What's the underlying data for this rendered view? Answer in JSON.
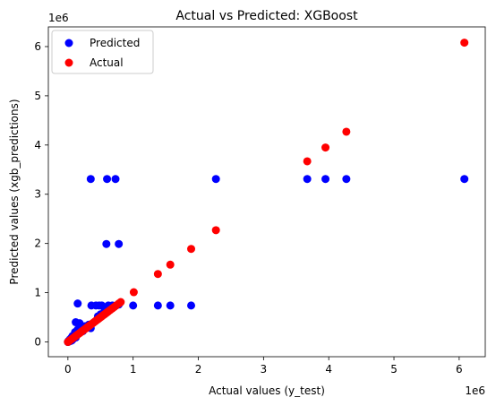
{
  "chart_data": {
    "type": "scatter",
    "title": "Actual vs Predicted: XGBoost",
    "xlabel": "Actual values (y_test)",
    "ylabel": "Predicted values (xgb_predictions)",
    "x_offset_label": "1e6",
    "y_offset_label": "1e6",
    "xlim": [
      -300000,
      6400000
    ],
    "ylim": [
      -300000,
      6400000
    ],
    "x_ticks": [
      0,
      1000000,
      2000000,
      3000000,
      4000000,
      5000000,
      6000000
    ],
    "x_tick_labels": [
      "0",
      "1",
      "2",
      "3",
      "4",
      "5",
      "6"
    ],
    "y_ticks": [
      0,
      1000000,
      2000000,
      3000000,
      4000000,
      5000000,
      6000000
    ],
    "y_tick_labels": [
      "0",
      "1",
      "2",
      "3",
      "4",
      "5",
      "6"
    ],
    "legend_position": "upper-left",
    "series": [
      {
        "name": "Predicted",
        "color": "#0000ff",
        "points": [
          [
            0,
            0
          ],
          [
            10000,
            20000
          ],
          [
            20000,
            10000
          ],
          [
            30000,
            50000
          ],
          [
            40000,
            20000
          ],
          [
            50000,
            80000
          ],
          [
            60000,
            30000
          ],
          [
            70000,
            120000
          ],
          [
            80000,
            60000
          ],
          [
            90000,
            100000
          ],
          [
            100000,
            150000
          ],
          [
            110000,
            200000
          ],
          [
            120000,
            90000
          ],
          [
            130000,
            170000
          ],
          [
            150000,
            250000
          ],
          [
            170000,
            180000
          ],
          [
            190000,
            260000
          ],
          [
            210000,
            300000
          ],
          [
            230000,
            220000
          ],
          [
            260000,
            320000
          ],
          [
            280000,
            290000
          ],
          [
            320000,
            350000
          ],
          [
            350000,
            280000
          ],
          [
            120000,
            400000
          ],
          [
            180000,
            380000
          ],
          [
            150000,
            780000
          ],
          [
            360000,
            740000
          ],
          [
            430000,
            740000
          ],
          [
            480000,
            740000
          ],
          [
            520000,
            740000
          ],
          [
            560000,
            700000
          ],
          [
            620000,
            740000
          ],
          [
            680000,
            740000
          ],
          [
            740000,
            740000
          ],
          [
            780000,
            760000
          ],
          [
            460000,
            520000
          ],
          [
            500000,
            560000
          ],
          [
            560000,
            620000
          ],
          [
            600000,
            650000
          ],
          [
            620000,
            700000
          ],
          [
            1000000,
            740000
          ],
          [
            1380000,
            740000
          ],
          [
            1570000,
            740000
          ],
          [
            1890000,
            740000
          ],
          [
            590000,
            1990000
          ],
          [
            780000,
            1990000
          ],
          [
            350000,
            3310000
          ],
          [
            600000,
            3310000
          ],
          [
            730000,
            3310000
          ],
          [
            2270000,
            3310000
          ],
          [
            3670000,
            3310000
          ],
          [
            3950000,
            3310000
          ],
          [
            4270000,
            3310000
          ],
          [
            6080000,
            3310000
          ]
        ]
      },
      {
        "name": "Actual",
        "color": "#ff0000",
        "points": [
          [
            0,
            0
          ],
          [
            20000,
            20000
          ],
          [
            40000,
            40000
          ],
          [
            60000,
            60000
          ],
          [
            80000,
            80000
          ],
          [
            100000,
            100000
          ],
          [
            120000,
            120000
          ],
          [
            140000,
            140000
          ],
          [
            160000,
            160000
          ],
          [
            180000,
            180000
          ],
          [
            200000,
            200000
          ],
          [
            220000,
            220000
          ],
          [
            240000,
            240000
          ],
          [
            260000,
            260000
          ],
          [
            280000,
            280000
          ],
          [
            300000,
            300000
          ],
          [
            320000,
            320000
          ],
          [
            340000,
            340000
          ],
          [
            360000,
            360000
          ],
          [
            380000,
            380000
          ],
          [
            400000,
            400000
          ],
          [
            420000,
            420000
          ],
          [
            440000,
            440000
          ],
          [
            460000,
            460000
          ],
          [
            480000,
            480000
          ],
          [
            500000,
            500000
          ],
          [
            520000,
            520000
          ],
          [
            540000,
            540000
          ],
          [
            560000,
            560000
          ],
          [
            580000,
            580000
          ],
          [
            600000,
            600000
          ],
          [
            620000,
            620000
          ],
          [
            650000,
            650000
          ],
          [
            680000,
            680000
          ],
          [
            710000,
            710000
          ],
          [
            740000,
            740000
          ],
          [
            780000,
            780000
          ],
          [
            810000,
            810000
          ],
          [
            1010000,
            1010000
          ],
          [
            1380000,
            1380000
          ],
          [
            1570000,
            1570000
          ],
          [
            1890000,
            1890000
          ],
          [
            2270000,
            2270000
          ],
          [
            3670000,
            3670000
          ],
          [
            3950000,
            3950000
          ],
          [
            4270000,
            4270000
          ],
          [
            6080000,
            6080000
          ]
        ]
      }
    ]
  }
}
